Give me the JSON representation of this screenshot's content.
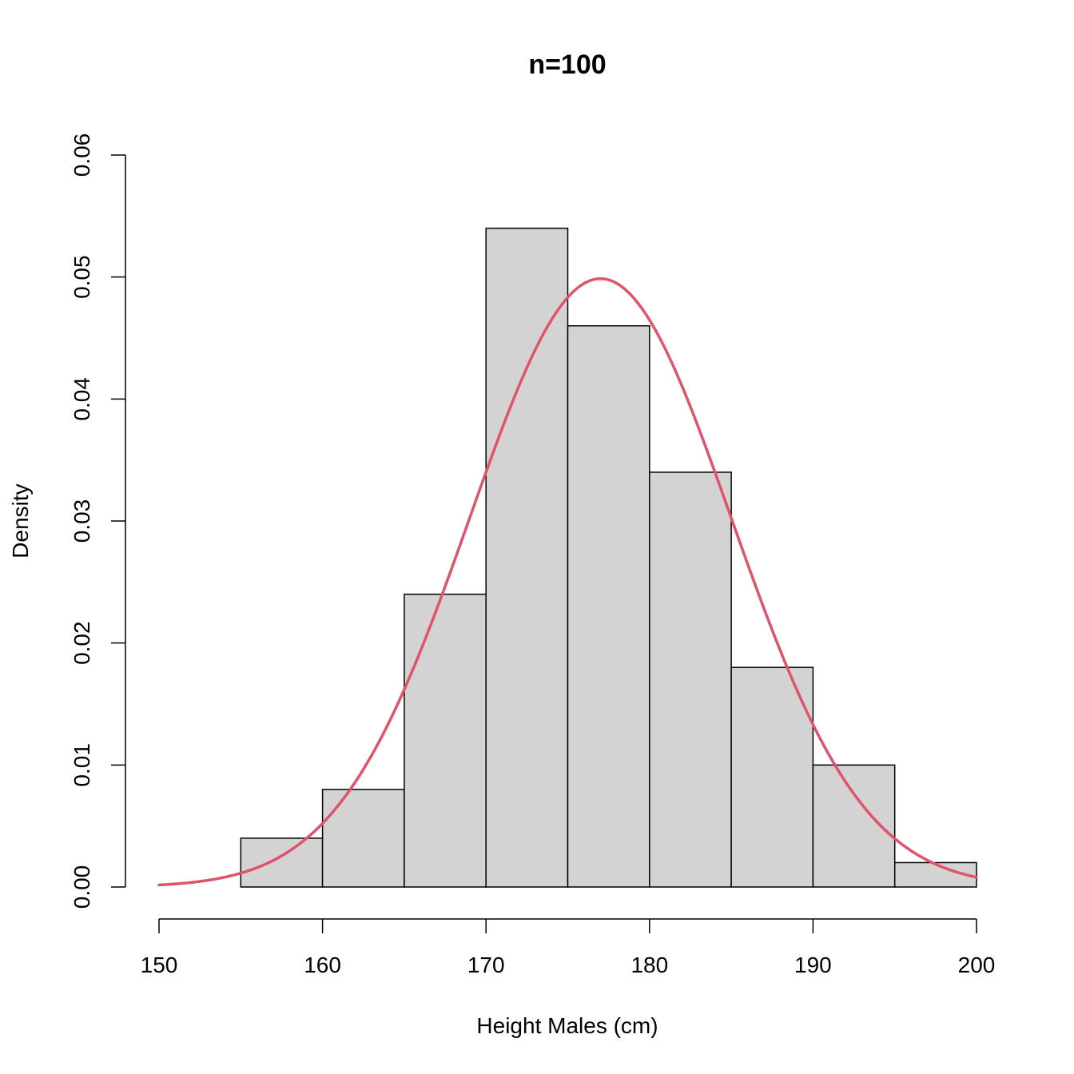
{
  "chart_data": {
    "type": "bar",
    "title": "n=100",
    "xlabel": "Height Males (cm)",
    "ylabel": "Density",
    "bins": [
      {
        "from": 155,
        "to": 160,
        "density": 0.004
      },
      {
        "from": 160,
        "to": 165,
        "density": 0.008
      },
      {
        "from": 165,
        "to": 170,
        "density": 0.024
      },
      {
        "from": 170,
        "to": 175,
        "density": 0.054
      },
      {
        "from": 175,
        "to": 180,
        "density": 0.046
      },
      {
        "from": 180,
        "to": 185,
        "density": 0.034
      },
      {
        "from": 185,
        "to": 190,
        "density": 0.018
      },
      {
        "from": 190,
        "to": 195,
        "density": 0.01
      },
      {
        "from": 195,
        "to": 200,
        "density": 0.002
      }
    ],
    "density_curve": {
      "distribution": "normal",
      "mean": 177,
      "sd": 8,
      "x_range": [
        150,
        200
      ]
    },
    "xlim": [
      150,
      200
    ],
    "ylim": [
      0,
      0.06
    ],
    "x_ticks": [
      "150",
      "160",
      "170",
      "180",
      "190",
      "200"
    ],
    "y_ticks": [
      "0.00",
      "0.01",
      "0.02",
      "0.03",
      "0.04",
      "0.05",
      "0.06"
    ],
    "bar_color": "#d3d3d3",
    "curve_color": "#df536b",
    "grid": false
  }
}
